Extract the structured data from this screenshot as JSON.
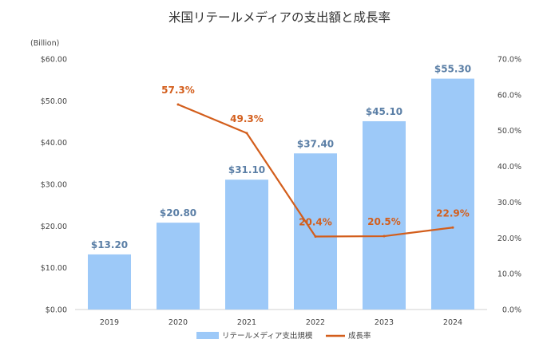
{
  "chart_data": {
    "type": "bar",
    "title": "米国リテールメディアの支出額と成長率",
    "unit_label": "(Billion)",
    "categories": [
      "2019",
      "2020",
      "2021",
      "2022",
      "2023",
      "2024"
    ],
    "series": [
      {
        "name": "リテールメディア支出規模",
        "kind": "bar",
        "axis": "left",
        "color": "#9DC9F8",
        "label_color": "#5B7FA6",
        "values": [
          13.2,
          20.8,
          31.1,
          37.4,
          45.1,
          55.3
        ],
        "data_labels": [
          "$13.20",
          "$20.80",
          "$31.10",
          "$37.40",
          "$45.10",
          "$55.30"
        ]
      },
      {
        "name": "成長率",
        "kind": "line",
        "axis": "right",
        "color": "#D35E1C",
        "values": [
          null,
          57.3,
          49.3,
          20.4,
          20.5,
          22.9
        ],
        "data_labels": [
          "",
          "57.3%",
          "49.3%",
          "20.4%",
          "20.5%",
          "22.9%"
        ]
      }
    ],
    "y_left": {
      "min": 0,
      "max": 60,
      "ticks": [
        0,
        10,
        20,
        30,
        40,
        50,
        60
      ],
      "tick_labels": [
        "$0.00",
        "$10.00",
        "$20.00",
        "$30.00",
        "$40.00",
        "$50.00",
        "$60.00"
      ]
    },
    "y_right": {
      "min": 0,
      "max": 70,
      "ticks": [
        0,
        10,
        20,
        30,
        40,
        50,
        60,
        70
      ],
      "tick_labels": [
        "0.0%",
        "10.0%",
        "20.0%",
        "30.0%",
        "40.0%",
        "50.0%",
        "60.0%",
        "70.0%"
      ]
    },
    "grid": false,
    "legend_position": "bottom"
  }
}
